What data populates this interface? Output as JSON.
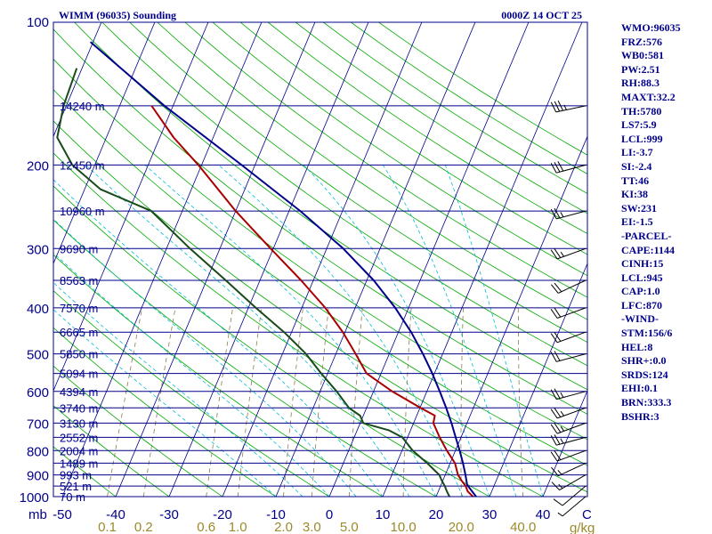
{
  "chart_data": {
    "type": "skew-t",
    "title": "WIMM (96035) Sounding",
    "datetime": "0000Z 14 OCT 25",
    "pressure_unit": "mb",
    "temperature_unit": "C",
    "mixing_ratio_unit": "g/kg",
    "pressure_range": [
      1000,
      100
    ],
    "temperature_axis_range": [
      -50,
      50
    ],
    "pressure_ticks": [
      100,
      200,
      300,
      400,
      500,
      600,
      700,
      800,
      900,
      1000
    ],
    "temperature_ticks": [
      -50,
      -40,
      -30,
      -20,
      -10,
      0,
      10,
      20,
      30,
      40
    ],
    "temperature_tick_labels": [
      "-50",
      "-40",
      "-30",
      "-20",
      "-10",
      "0",
      "10",
      "20",
      "30",
      "40"
    ],
    "mixing_ratio_labels": [
      {
        "label": "0.1",
        "value": 0.1
      },
      {
        "label": "0.2",
        "value": 0.2
      },
      {
        "label": "0.6",
        "value": 0.6
      },
      {
        "label": "1.0",
        "value": 1.0
      },
      {
        "label": "2.0",
        "value": 2.0
      },
      {
        "label": "3.0",
        "value": 3.0
      },
      {
        "label": "5.0",
        "value": 5.0
      },
      {
        "label": "10.0",
        "value": 10.0
      },
      {
        "label": "20.0",
        "value": 20.0
      },
      {
        "label": "40.0",
        "value": 40.0
      }
    ],
    "height_levels": [
      {
        "label": "14240 m",
        "p": 150
      },
      {
        "label": "12450 m",
        "p": 200
      },
      {
        "label": "10960 m",
        "p": 250
      },
      {
        "label": "9690 m",
        "p": 300
      },
      {
        "label": "8563 m",
        "p": 350
      },
      {
        "label": "7570 m",
        "p": 400
      },
      {
        "label": "6665 m",
        "p": 450
      },
      {
        "label": "5850 m",
        "p": 500
      },
      {
        "label": "5094 m",
        "p": 550
      },
      {
        "label": "4394 m",
        "p": 600
      },
      {
        "label": "3740 m",
        "p": 650
      },
      {
        "label": "3130 m",
        "p": 700
      },
      {
        "label": "2552 m",
        "p": 750
      },
      {
        "label": "2004 m",
        "p": 800
      },
      {
        "label": "1489 m",
        "p": 850
      },
      {
        "label": "993 m",
        "p": 900
      },
      {
        "label": "521 m",
        "p": 950
      },
      {
        "label": "70 m",
        "p": 1000
      }
    ],
    "series": [
      {
        "name": "Temperature",
        "color": "#aa0000",
        "points": [
          [
            1003,
            27.3
          ],
          [
            1000,
            26.9
          ],
          [
            975,
            25.5
          ],
          [
            950,
            24.7
          ],
          [
            925,
            23.5
          ],
          [
            900,
            22.4
          ],
          [
            850,
            20.9
          ],
          [
            800,
            18.4
          ],
          [
            750,
            16.0
          ],
          [
            700,
            13.7
          ],
          [
            675,
            13.4
          ],
          [
            650,
            10.1
          ],
          [
            600,
            3.5
          ],
          [
            550,
            -2.7
          ],
          [
            500,
            -6.3
          ],
          [
            450,
            -10.4
          ],
          [
            400,
            -15.6
          ],
          [
            350,
            -22.3
          ],
          [
            300,
            -30.5
          ],
          [
            250,
            -40.0
          ],
          [
            200,
            -50.6
          ],
          [
            175,
            -57.4
          ],
          [
            150,
            -64.0
          ]
        ]
      },
      {
        "name": "Dewpoint",
        "color": "#1a4a1a",
        "points": [
          [
            1003,
            22.8
          ],
          [
            1000,
            22.5
          ],
          [
            975,
            21.6
          ],
          [
            950,
            20.8
          ],
          [
            925,
            19.8
          ],
          [
            900,
            18.9
          ],
          [
            850,
            15.7
          ],
          [
            800,
            12.0
          ],
          [
            750,
            9.0
          ],
          [
            725,
            6.0
          ],
          [
            700,
            0.6
          ],
          [
            675,
            -0.6
          ],
          [
            650,
            -3.3
          ],
          [
            600,
            -6.9
          ],
          [
            550,
            -11.2
          ],
          [
            500,
            -15.6
          ],
          [
            450,
            -21.4
          ],
          [
            400,
            -28.6
          ],
          [
            350,
            -36.4
          ],
          [
            300,
            -45.6
          ],
          [
            250,
            -55.8
          ],
          [
            225,
            -67.0
          ],
          [
            200,
            -74.2
          ],
          [
            175,
            -79.2
          ],
          [
            150,
            -80.5
          ],
          [
            125,
            -81.0
          ]
        ]
      },
      {
        "name": "Parcel path",
        "color": "#00008b",
        "points": [
          [
            1000,
            27.5
          ],
          [
            945,
            24.9
          ],
          [
            900,
            23.8
          ],
          [
            850,
            22.4
          ],
          [
            800,
            20.8
          ],
          [
            750,
            19.0
          ],
          [
            700,
            17.1
          ],
          [
            650,
            14.9
          ],
          [
            600,
            12.4
          ],
          [
            550,
            9.6
          ],
          [
            500,
            6.3
          ],
          [
            450,
            2.4
          ],
          [
            400,
            -2.5
          ],
          [
            350,
            -8.7
          ],
          [
            300,
            -16.9
          ],
          [
            250,
            -27.9
          ],
          [
            200,
            -42.5
          ],
          [
            150,
            -61.6
          ],
          [
            110,
            -80.5
          ]
        ]
      }
    ],
    "wind_barbs": [
      {
        "p": 1000,
        "dir": 230,
        "kt": 7
      },
      {
        "p": 950,
        "dir": 230,
        "kt": 10
      },
      {
        "p": 900,
        "dir": 240,
        "kt": 14
      },
      {
        "p": 850,
        "dir": 245,
        "kt": 16
      },
      {
        "p": 800,
        "dir": 250,
        "kt": 20
      },
      {
        "p": 750,
        "dir": 255,
        "kt": 24
      },
      {
        "p": 700,
        "dir": 250,
        "kt": 26
      },
      {
        "p": 650,
        "dir": 250,
        "kt": 26
      },
      {
        "p": 600,
        "dir": 255,
        "kt": 24
      },
      {
        "p": 500,
        "dir": 255,
        "kt": 22
      },
      {
        "p": 450,
        "dir": 250,
        "kt": 22
      },
      {
        "p": 400,
        "dir": 250,
        "kt": 20
      },
      {
        "p": 350,
        "dir": 245,
        "kt": 18
      },
      {
        "p": 300,
        "dir": 250,
        "kt": 26
      },
      {
        "p": 250,
        "dir": 255,
        "kt": 24
      },
      {
        "p": 200,
        "dir": 255,
        "kt": 28
      },
      {
        "p": 150,
        "dir": 258,
        "kt": 36
      }
    ]
  },
  "indices": [
    "WMO:96035",
    "FRZ:576",
    "WB0:581",
    "PW:2.51",
    "RH:88.3",
    "MAXT:32.2",
    "TH:5780",
    "LS7:5.9",
    "LCL:999",
    "LI:-3.7",
    "SI:-2.4",
    "TT:46",
    "KI:38",
    "SW:231",
    "EI:-1.5",
    "-PARCEL-",
    "CAPE:1144",
    "CINH:15",
    "LCL:945",
    "CAP:1.0",
    "LFC:870",
    "-WIND-",
    "STM:156/6",
    "HEL:8",
    "SHR+:0.0",
    "SRDS:124",
    "EHI:0.1",
    "BRN:333.3",
    "BSHR:3"
  ],
  "colors": {
    "background": "#ffffff",
    "isobar": "#00008b",
    "isotherm": "#00008b",
    "dry_adiabat": "#00aa00",
    "moist_adiabat": "#00bcd4",
    "mixing_ratio": "#8b7d4e",
    "axis_text": "#00008b",
    "mixing_text": "#9b8a2a"
  }
}
